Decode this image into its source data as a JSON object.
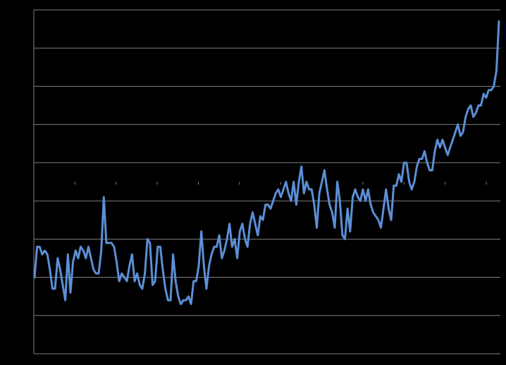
{
  "chart_data": {
    "type": "line",
    "title": "",
    "xlabel": "",
    "ylabel": "",
    "grid": true,
    "legend": "none",
    "ylim": [
      0,
      9
    ],
    "y_gridlines": [
      0,
      1,
      2,
      3,
      4,
      5,
      6,
      7,
      8,
      9
    ],
    "x_origin_fraction": 0.5,
    "xlim": [
      0,
      214
    ],
    "colors": {
      "background": "#000000",
      "grid": "#7f7f7f",
      "series": "#5b8fd6"
    },
    "series": [
      {
        "values": [
          2.0,
          2.8,
          2.8,
          2.6,
          2.7,
          2.6,
          2.2,
          1.7,
          1.7,
          2.5,
          2.2,
          1.8,
          1.4,
          2.6,
          1.6,
          2.4,
          2.7,
          2.5,
          2.8,
          2.7,
          2.5,
          2.8,
          2.5,
          2.2,
          2.1,
          2.1,
          2.7,
          4.1,
          2.9,
          2.9,
          2.9,
          2.8,
          2.4,
          1.9,
          2.1,
          2.0,
          1.9,
          2.3,
          2.6,
          1.9,
          2.1,
          1.8,
          1.7,
          2.1,
          3.0,
          2.9,
          1.8,
          1.9,
          2.8,
          2.8,
          2.2,
          1.7,
          1.4,
          1.4,
          2.6,
          1.9,
          1.5,
          1.3,
          1.4,
          1.4,
          1.5,
          1.3,
          1.9,
          1.9,
          2.3,
          3.2,
          2.3,
          1.7,
          2.3,
          2.6,
          2.8,
          2.8,
          3.1,
          2.5,
          2.7,
          3.0,
          3.4,
          2.8,
          3.0,
          2.5,
          3.2,
          3.4,
          3.0,
          2.8,
          3.4,
          3.7,
          3.4,
          3.1,
          3.6,
          3.5,
          3.9,
          3.9,
          3.8,
          4.0,
          4.2,
          4.3,
          4.1,
          4.3,
          4.5,
          4.2,
          4.0,
          4.5,
          3.9,
          4.5,
          4.9,
          4.2,
          4.5,
          4.3,
          4.3,
          3.9,
          3.3,
          4.2,
          4.5,
          4.8,
          4.3,
          3.9,
          3.7,
          3.3,
          4.5,
          4.0,
          3.1,
          3.0,
          3.8,
          3.2,
          4.1,
          4.3,
          4.1,
          4.0,
          4.3,
          4.0,
          4.3,
          3.9,
          3.7,
          3.6,
          3.5,
          3.3,
          3.8,
          4.3,
          3.8,
          3.5,
          4.4,
          4.4,
          4.7,
          4.5,
          5.0,
          5.0,
          4.5,
          4.3,
          4.5,
          4.9,
          5.1,
          5.1,
          5.3,
          5.0,
          4.8,
          4.8,
          5.3,
          5.6,
          5.4,
          5.6,
          5.4,
          5.2,
          5.4,
          5.6,
          5.8,
          6.0,
          5.7,
          5.8,
          6.2,
          6.4,
          6.5,
          6.2,
          6.3,
          6.5,
          6.5,
          6.8,
          6.7,
          6.9,
          6.9,
          7.0,
          7.4,
          8.7
        ],
        "values_note": ""
      }
    ]
  }
}
